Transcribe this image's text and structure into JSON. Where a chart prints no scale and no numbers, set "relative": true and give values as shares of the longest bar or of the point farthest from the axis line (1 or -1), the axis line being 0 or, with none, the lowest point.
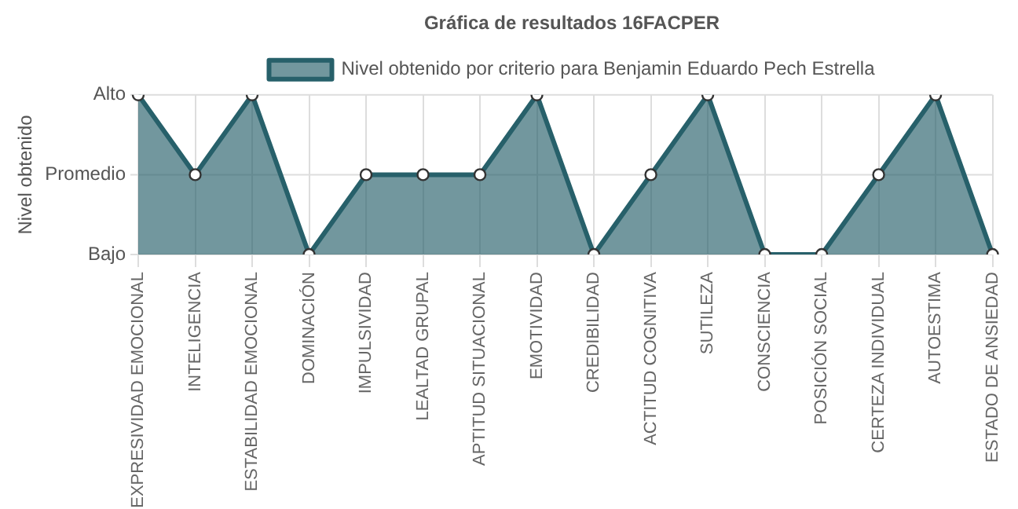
{
  "chart_data": {
    "type": "area",
    "title": "Gráfica de resultados 16FACPER",
    "ylabel": "Nivel obtenido",
    "relative": true,
    "categories": [
      "EXPRESIVIDAD EMOCIONAL",
      "INTELIGENCIA",
      "ESTABILIDAD EMOCIONAL",
      "DOMINACIÓN",
      "IMPULSIVIDAD",
      "LEALTAD GRUPAL",
      "APTITUD SITUACIONAL",
      "EMOTIVIDAD",
      "CREDIBILIDAD",
      "ACTITUD COGNITIVA",
      "SUTILEZA",
      "CONSCIENCIA",
      "POSICIÓN SOCIAL",
      "CERTEZA INDIVIDUAL",
      "AUTOESTIMA",
      "ESTADO DE ANSIEDAD"
    ],
    "series": [
      {
        "name": "Nivel obtenido por criterio para Benjamin Eduardo Pech Estrella",
        "color": "#27606a",
        "values": [
          1,
          0.5,
          1,
          0,
          0.5,
          0.5,
          0.5,
          1,
          0,
          0.5,
          1,
          0,
          0,
          0.5,
          1,
          0
        ]
      }
    ],
    "annotations": [
      "Bajo",
      "Promedio",
      "Alto"
    ],
    "grid": "x",
    "legend": "top",
    "marker": "circle",
    "line_style": "solid"
  }
}
